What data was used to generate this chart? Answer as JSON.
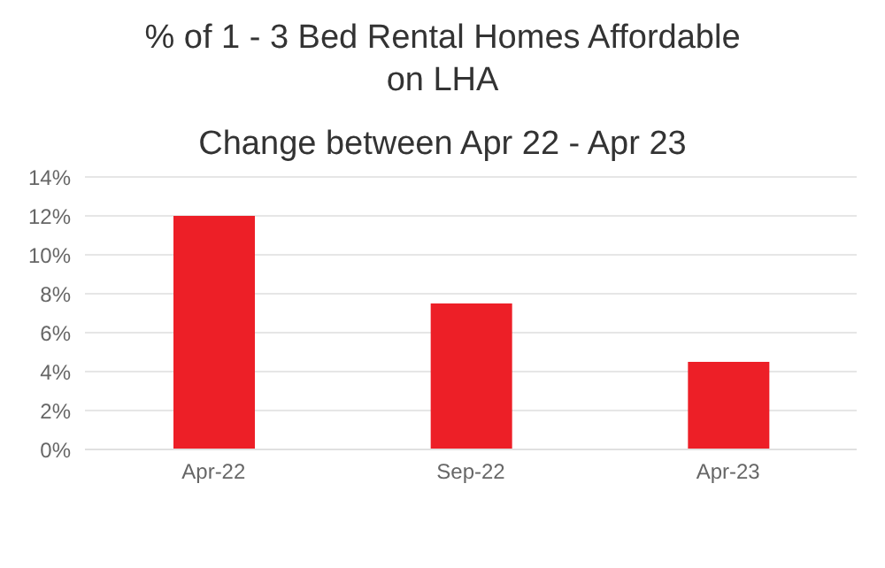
{
  "chart_data": {
    "type": "bar",
    "title": "% of 1 - 3 Bed Rental Homes Affordable on LHA",
    "subtitle": "Change between Apr 22 - Apr 23",
    "categories": [
      "Apr-22",
      "Sep-22",
      "Apr-23"
    ],
    "values": [
      12,
      7.5,
      4.5
    ],
    "color": "#ed1f27",
    "ylim": [
      0,
      14
    ],
    "yticks": [
      {
        "value": 0,
        "label": "0%"
      },
      {
        "value": 2,
        "label": "2%"
      },
      {
        "value": 4,
        "label": "4%"
      },
      {
        "value": 6,
        "label": "6%"
      },
      {
        "value": 8,
        "label": "8%"
      },
      {
        "value": 10,
        "label": "10%"
      },
      {
        "value": 12,
        "label": "12%"
      },
      {
        "value": 14,
        "label": "14%"
      }
    ],
    "grid": "y"
  }
}
